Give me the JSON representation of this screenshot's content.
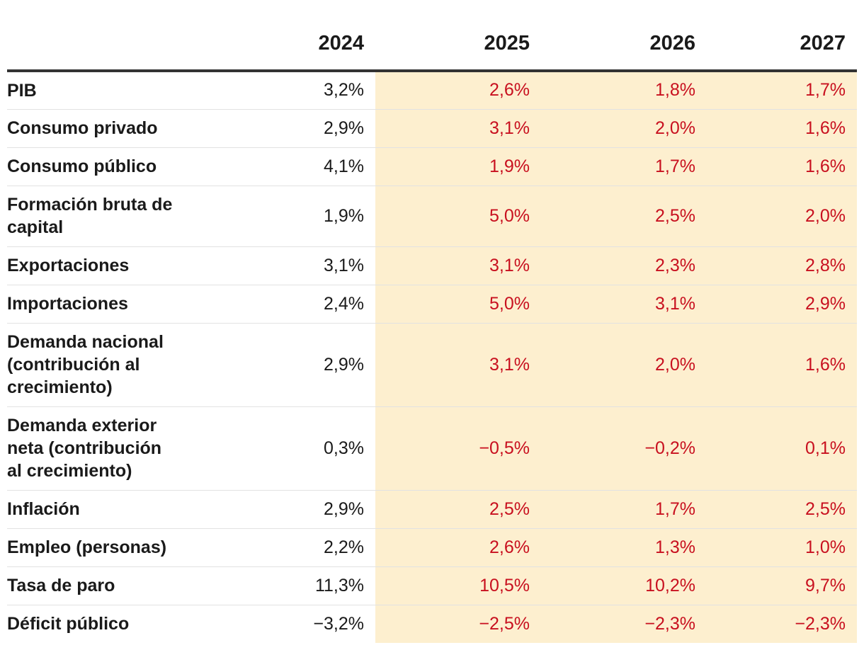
{
  "chart_data": {
    "type": "table",
    "columns": [
      "2024",
      "2025",
      "2026",
      "2027"
    ],
    "projection_columns": [
      "2025",
      "2026",
      "2027"
    ],
    "colors": {
      "projection_bg": "#fdefcf",
      "projection_text": "#c8101f",
      "historic_text": "#1a1a1a"
    },
    "rows": [
      {
        "label": "PIB",
        "values": [
          "3,2%",
          "2,6%",
          "1,8%",
          "1,7%"
        ]
      },
      {
        "label": "Consumo privado",
        "values": [
          "2,9%",
          "3,1%",
          "2,0%",
          "1,6%"
        ]
      },
      {
        "label": "Consumo público",
        "values": [
          "4,1%",
          "1,9%",
          "1,7%",
          "1,6%"
        ]
      },
      {
        "label": "Formación bruta de capital",
        "values": [
          "1,9%",
          "5,0%",
          "2,5%",
          "2,0%"
        ]
      },
      {
        "label": "Exportaciones",
        "values": [
          "3,1%",
          "3,1%",
          "2,3%",
          "2,8%"
        ]
      },
      {
        "label": "Importaciones",
        "values": [
          "2,4%",
          "5,0%",
          "3,1%",
          "2,9%"
        ]
      },
      {
        "label": "Demanda nacional (contribución al crecimiento)",
        "values": [
          "2,9%",
          "3,1%",
          "2,0%",
          "1,6%"
        ]
      },
      {
        "label": "Demanda exterior neta (contribución al crecimiento)",
        "values": [
          "0,3%",
          "−0,5%",
          "−0,2%",
          "0,1%"
        ]
      },
      {
        "label": "Inflación",
        "values": [
          "2,9%",
          "2,5%",
          "1,7%",
          "2,5%"
        ]
      },
      {
        "label": "Empleo (personas)",
        "values": [
          "2,2%",
          "2,6%",
          "1,3%",
          "1,0%"
        ]
      },
      {
        "label": "Tasa de paro",
        "values": [
          "11,3%",
          "10,5%",
          "10,2%",
          "9,7%"
        ]
      },
      {
        "label": "Déficit público",
        "values": [
          "−3,2%",
          "−2,5%",
          "−2,3%",
          "−2,3%"
        ]
      }
    ]
  }
}
